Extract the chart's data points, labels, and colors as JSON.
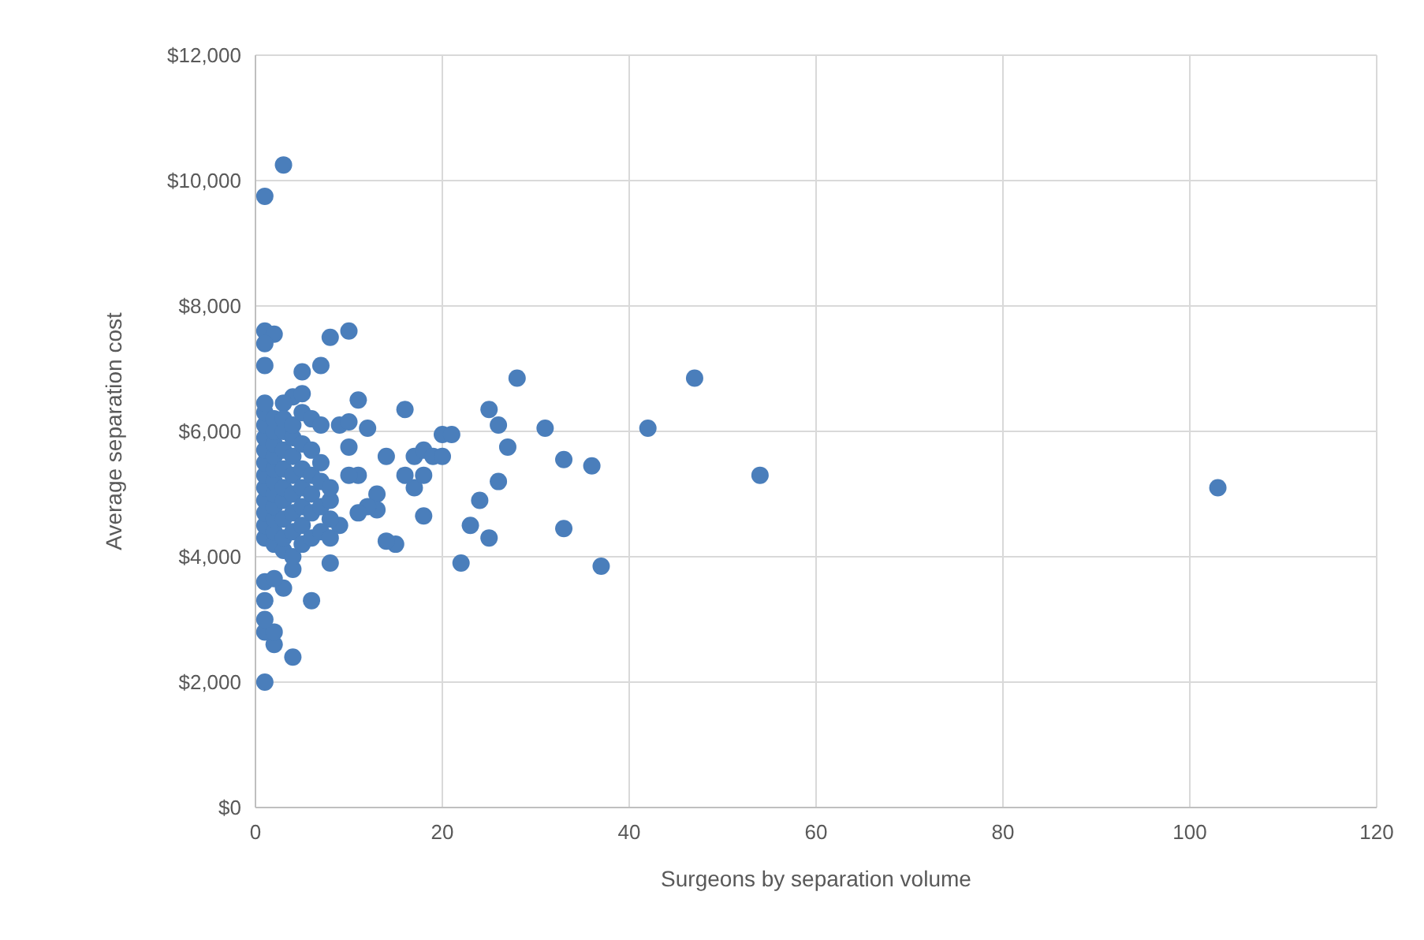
{
  "chart_data": {
    "type": "scatter",
    "xlabel": "Surgeons by separation volume",
    "ylabel": "Average separation cost",
    "xlim": [
      0,
      120
    ],
    "xticks": [
      0,
      20,
      40,
      60,
      80,
      100,
      120
    ],
    "ylim": [
      0,
      12000
    ],
    "yticks": [
      {
        "value": 0,
        "label": "$0"
      },
      {
        "value": 2000,
        "label": "$2,000"
      },
      {
        "value": 4000,
        "label": "$4,000"
      },
      {
        "value": 6000,
        "label": "$6,000"
      },
      {
        "value": 8000,
        "label": "$8,000"
      },
      {
        "value": 10000,
        "label": "$10,000"
      },
      {
        "value": 12000,
        "label": "$12,000"
      }
    ],
    "grid": true,
    "marker": "circle",
    "series": [
      {
        "color": "#4a7ebb",
        "x": [
          3,
          1,
          1,
          2,
          1,
          1,
          8,
          10,
          7,
          5,
          4,
          5,
          3,
          11,
          16,
          20,
          21,
          25,
          26,
          28,
          27,
          31,
          33,
          36,
          42,
          47,
          54,
          103,
          24,
          26,
          23,
          25,
          33,
          37,
          22,
          18,
          15,
          14,
          17,
          17,
          18,
          19,
          20,
          16,
          18,
          13,
          13,
          14,
          12,
          11,
          11,
          12,
          9,
          10,
          10,
          10,
          9,
          8,
          8,
          6,
          4,
          3,
          4,
          2,
          1,
          1,
          2,
          1,
          1,
          2,
          1,
          1,
          1,
          1,
          1,
          1,
          1,
          1,
          1,
          1,
          1,
          1,
          1,
          2,
          2,
          2,
          2,
          2,
          2,
          2,
          2,
          2,
          2,
          2,
          3,
          3,
          3,
          3,
          3,
          3,
          3,
          3,
          3,
          4,
          4,
          4,
          4,
          4,
          4,
          4,
          4,
          5,
          5,
          5,
          5,
          5,
          5,
          5,
          6,
          6,
          6,
          6,
          6,
          6,
          7,
          7,
          7,
          7,
          7,
          8,
          8,
          8
        ],
        "values": [
          10250,
          9750,
          7600,
          7550,
          7400,
          7050,
          7500,
          7600,
          7050,
          6950,
          6550,
          6600,
          6450,
          6500,
          6350,
          5950,
          5950,
          6350,
          6100,
          6850,
          5750,
          6050,
          5550,
          5450,
          6050,
          6850,
          5300,
          5100,
          4900,
          5200,
          4500,
          4300,
          4450,
          3850,
          3900,
          4650,
          4200,
          4250,
          5100,
          5600,
          5700,
          5600,
          5600,
          5300,
          5300,
          5000,
          4750,
          5600,
          4800,
          4700,
          5300,
          6050,
          6100,
          6150,
          5750,
          5300,
          4500,
          4600,
          3900,
          3300,
          3800,
          3500,
          2400,
          2600,
          2000,
          2800,
          2800,
          3300,
          3600,
          3650,
          3000,
          4300,
          4500,
          4700,
          4900,
          5100,
          5300,
          5500,
          5700,
          5900,
          6100,
          6300,
          6450,
          4200,
          4400,
          4600,
          4800,
          5000,
          5200,
          5400,
          5600,
          5800,
          6000,
          6200,
          4100,
          4300,
          4600,
          4900,
          5100,
          5400,
          5700,
          6000,
          6200,
          4000,
          4400,
          4700,
          5000,
          5300,
          5600,
          5900,
          6100,
          4200,
          4500,
          4800,
          5100,
          5400,
          5800,
          6300,
          4300,
          4700,
          5000,
          5300,
          5700,
          6200,
          4400,
          4800,
          5200,
          5500,
          6100,
          4300,
          4900,
          5100
        ]
      }
    ]
  }
}
